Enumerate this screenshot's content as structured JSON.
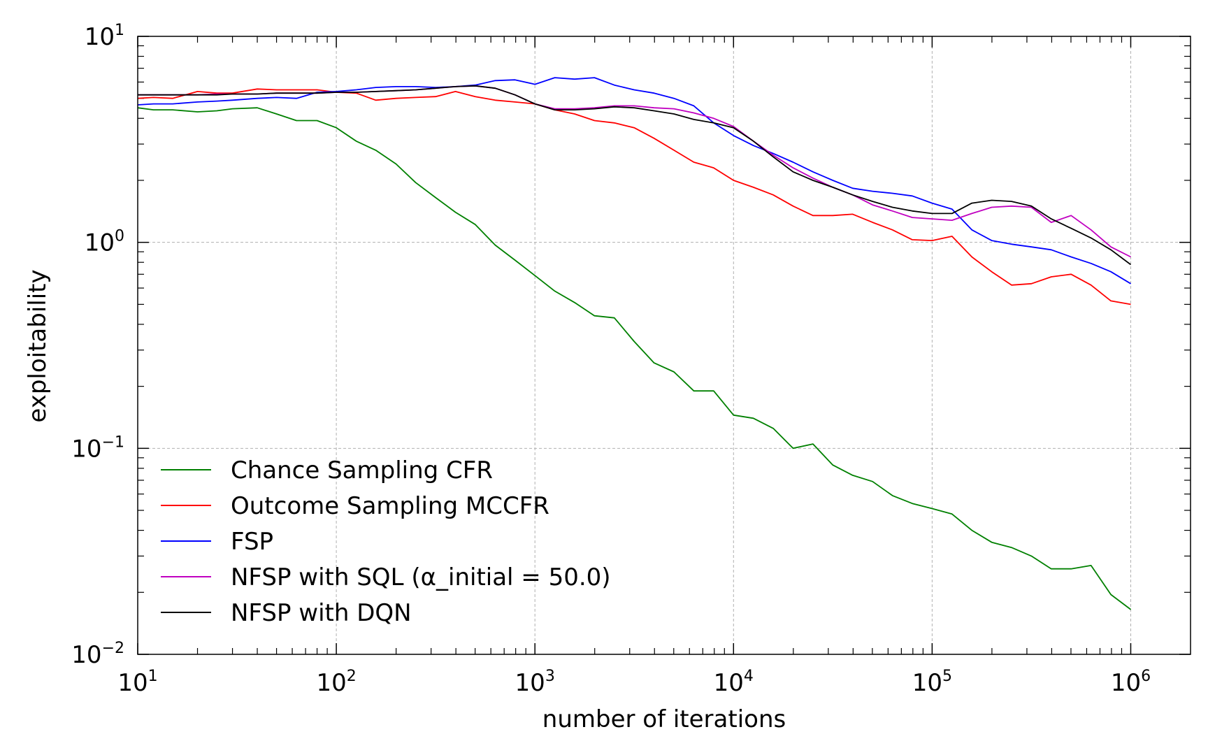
{
  "chart_data": {
    "type": "line",
    "title": "",
    "xlabel": "number of iterations",
    "ylabel": "exploitability",
    "xscale": "log",
    "yscale": "log",
    "xlim": [
      10,
      2000000
    ],
    "ylim": [
      0.01,
      10
    ],
    "grid": true,
    "legend_position": "lower-left",
    "x_ticks": [
      {
        "base": "10",
        "exp": "1",
        "value": 10
      },
      {
        "base": "10",
        "exp": "2",
        "value": 100
      },
      {
        "base": "10",
        "exp": "3",
        "value": 1000
      },
      {
        "base": "10",
        "exp": "4",
        "value": 10000
      },
      {
        "base": "10",
        "exp": "5",
        "value": 100000
      },
      {
        "base": "10",
        "exp": "6",
        "value": 1000000
      }
    ],
    "y_ticks": [
      {
        "base": "10",
        "exp": "1",
        "value": 10
      },
      {
        "base": "10",
        "exp": "0",
        "value": 1
      },
      {
        "base": "10",
        "exp": "−1",
        "value": 0.1
      },
      {
        "base": "10",
        "exp": "−2",
        "value": 0.01
      }
    ],
    "series": [
      {
        "name": "Chance Sampling CFR",
        "color": "#008000",
        "x": [
          10,
          12,
          15,
          20,
          25,
          30,
          40,
          50,
          63,
          80,
          100,
          126,
          158,
          200,
          251,
          316,
          398,
          501,
          631,
          794,
          1000,
          1259,
          1585,
          1995,
          2512,
          3162,
          3981,
          5012,
          6310,
          7943,
          10000,
          12589,
          15849,
          19953,
          25119,
          31623,
          39811,
          50119,
          63096,
          79433,
          100000,
          125893,
          158489,
          199526,
          251189,
          316228,
          398107,
          501187,
          630957,
          794328,
          1000000
        ],
        "y": [
          4.5,
          4.4,
          4.4,
          4.3,
          4.35,
          4.45,
          4.5,
          4.2,
          3.9,
          3.9,
          3.6,
          3.1,
          2.8,
          2.4,
          1.95,
          1.65,
          1.4,
          1.22,
          0.97,
          0.82,
          0.69,
          0.58,
          0.51,
          0.44,
          0.43,
          0.33,
          0.26,
          0.235,
          0.19,
          0.19,
          0.145,
          0.14,
          0.125,
          0.1,
          0.105,
          0.083,
          0.074,
          0.069,
          0.059,
          0.054,
          0.051,
          0.048,
          0.04,
          0.035,
          0.033,
          0.03,
          0.026,
          0.026,
          0.027,
          0.0195,
          0.0165
        ]
      },
      {
        "name": "Outcome Sampling MCCFR",
        "color": "#ff0000",
        "x": [
          10,
          12,
          15,
          20,
          25,
          30,
          40,
          50,
          63,
          80,
          100,
          126,
          158,
          200,
          251,
          316,
          398,
          501,
          631,
          794,
          1000,
          1259,
          1585,
          1995,
          2512,
          3162,
          3981,
          5012,
          6310,
          7943,
          10000,
          12589,
          15849,
          19953,
          25119,
          31623,
          39811,
          50119,
          63096,
          79433,
          100000,
          125893,
          158489,
          199526,
          251189,
          316228,
          398107,
          501187,
          630957,
          794328,
          1000000
        ],
        "y": [
          5.0,
          5.05,
          5.0,
          5.4,
          5.3,
          5.3,
          5.55,
          5.5,
          5.5,
          5.5,
          5.35,
          5.3,
          4.9,
          5.0,
          5.05,
          5.1,
          5.4,
          5.1,
          4.9,
          4.8,
          4.7,
          4.4,
          4.2,
          3.9,
          3.8,
          3.6,
          3.2,
          2.8,
          2.45,
          2.3,
          2.0,
          1.85,
          1.7,
          1.5,
          1.35,
          1.35,
          1.37,
          1.25,
          1.15,
          1.03,
          1.02,
          1.07,
          0.85,
          0.72,
          0.62,
          0.63,
          0.68,
          0.7,
          0.62,
          0.52,
          0.5
        ]
      },
      {
        "name": "FSP",
        "color": "#0000ff",
        "x": [
          10,
          12,
          15,
          20,
          25,
          30,
          40,
          50,
          63,
          80,
          100,
          126,
          158,
          200,
          251,
          316,
          398,
          501,
          631,
          794,
          1000,
          1259,
          1585,
          1995,
          2512,
          3162,
          3981,
          5012,
          6310,
          7943,
          10000,
          12589,
          15849,
          19953,
          25119,
          31623,
          39811,
          50119,
          63096,
          79433,
          100000,
          125893,
          158489,
          199526,
          251189,
          316228,
          398107,
          501187,
          630957,
          794328,
          1000000
        ],
        "y": [
          4.65,
          4.7,
          4.7,
          4.8,
          4.85,
          4.9,
          5.0,
          5.05,
          5.0,
          5.35,
          5.4,
          5.5,
          5.65,
          5.7,
          5.7,
          5.65,
          5.7,
          5.8,
          6.1,
          6.15,
          5.85,
          6.3,
          6.2,
          6.3,
          5.8,
          5.5,
          5.3,
          5.0,
          4.6,
          3.8,
          3.3,
          2.95,
          2.7,
          2.45,
          2.2,
          2.0,
          1.83,
          1.77,
          1.73,
          1.68,
          1.55,
          1.45,
          1.15,
          1.02,
          0.98,
          0.95,
          0.92,
          0.85,
          0.79,
          0.72,
          0.63
        ]
      },
      {
        "name": "NFSP with SQL (α_initial = 50.0)",
        "color": "#c000c0",
        "x": [
          10,
          12,
          15,
          20,
          25,
          30,
          40,
          50,
          63,
          80,
          100,
          126,
          158,
          200,
          251,
          316,
          398,
          501,
          631,
          794,
          1000,
          1259,
          1585,
          1995,
          2512,
          3162,
          3981,
          5012,
          6310,
          7943,
          10000,
          12589,
          15849,
          19953,
          25119,
          31623,
          39811,
          50119,
          63096,
          79433,
          100000,
          125893,
          158489,
          199526,
          251189,
          316228,
          398107,
          501187,
          630957,
          794328,
          1000000
        ],
        "y": [
          5.2,
          5.2,
          5.2,
          5.2,
          5.25,
          5.25,
          5.25,
          5.3,
          5.3,
          5.3,
          5.35,
          5.35,
          5.4,
          5.45,
          5.5,
          5.6,
          5.7,
          5.75,
          5.6,
          5.2,
          4.7,
          4.45,
          4.45,
          4.5,
          4.6,
          4.6,
          4.5,
          4.45,
          4.25,
          4.0,
          3.65,
          3.1,
          2.65,
          2.3,
          2.05,
          1.85,
          1.7,
          1.52,
          1.42,
          1.32,
          1.3,
          1.28,
          1.38,
          1.48,
          1.5,
          1.48,
          1.25,
          1.35,
          1.15,
          0.95,
          0.85
        ]
      },
      {
        "name": "NFSP with DQN",
        "color": "#000000",
        "x": [
          10,
          12,
          15,
          20,
          25,
          30,
          40,
          50,
          63,
          80,
          100,
          126,
          158,
          200,
          251,
          316,
          398,
          501,
          631,
          794,
          1000,
          1259,
          1585,
          1995,
          2512,
          3162,
          3981,
          5012,
          6310,
          7943,
          10000,
          12589,
          15849,
          19953,
          25119,
          31623,
          39811,
          50119,
          63096,
          79433,
          100000,
          125893,
          158489,
          199526,
          251189,
          316228,
          398107,
          501187,
          630957,
          794328,
          1000000
        ],
        "y": [
          5.2,
          5.2,
          5.2,
          5.2,
          5.2,
          5.25,
          5.25,
          5.3,
          5.3,
          5.3,
          5.35,
          5.35,
          5.4,
          5.45,
          5.5,
          5.6,
          5.7,
          5.75,
          5.6,
          5.2,
          4.7,
          4.4,
          4.4,
          4.45,
          4.55,
          4.5,
          4.35,
          4.2,
          3.95,
          3.8,
          3.6,
          3.1,
          2.6,
          2.2,
          2.0,
          1.85,
          1.7,
          1.58,
          1.48,
          1.42,
          1.38,
          1.38,
          1.55,
          1.6,
          1.58,
          1.5,
          1.3,
          1.17,
          1.05,
          0.92,
          0.78
        ]
      }
    ]
  }
}
